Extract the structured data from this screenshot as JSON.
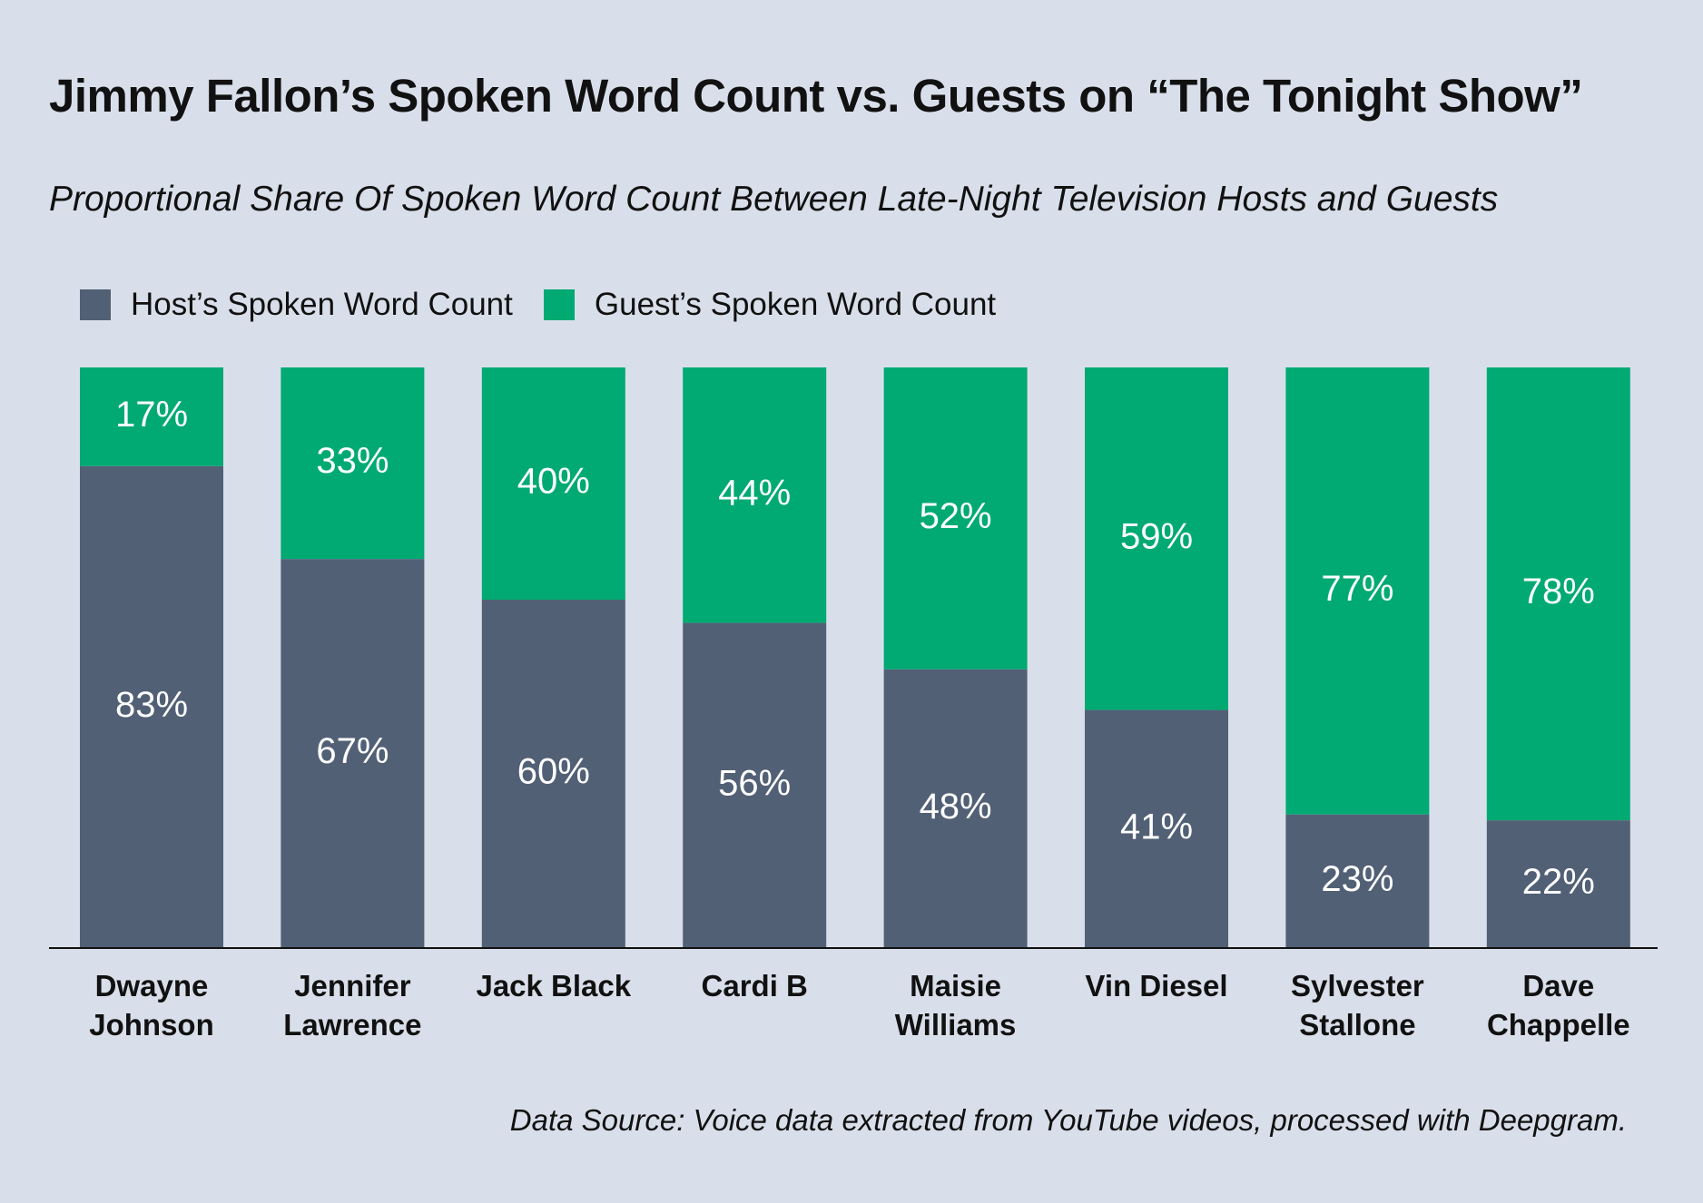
{
  "title": "Jimmy Fallon’s Spoken Word Count vs. Guests on “The Tonight Show”",
  "subtitle": "Proportional Share Of Spoken Word Count Between Late-Night Television Hosts and Guests",
  "footer": "Data Source: Voice data extracted from YouTube videos, processed with Deepgram.",
  "colors": {
    "background": "#d9dfea",
    "host": "#526076",
    "guest": "#00aa72",
    "axis": "#111111"
  },
  "chart_data": {
    "type": "bar",
    "stacked": true,
    "categories": [
      [
        "Dwayne",
        "Johnson"
      ],
      [
        "Jennifer",
        "Lawrence"
      ],
      [
        "Jack Black"
      ],
      [
        "Cardi B"
      ],
      [
        "Maisie",
        "Williams"
      ],
      [
        "Vin Diesel"
      ],
      [
        "Sylvester",
        "Stallone"
      ],
      [
        "Dave",
        "Chappelle"
      ]
    ],
    "series": [
      {
        "name": "Host’s Spoken Word Count",
        "color": "#526076",
        "values": [
          83,
          67,
          60,
          56,
          48,
          41,
          23,
          22
        ]
      },
      {
        "name": "Guest’s Spoken Word Count",
        "color": "#00aa72",
        "values": [
          17,
          33,
          40,
          44,
          52,
          59,
          77,
          78
        ]
      }
    ],
    "value_suffix": "%",
    "ylim": [
      0,
      100
    ],
    "legend_position": "top-left",
    "grid": false
  }
}
